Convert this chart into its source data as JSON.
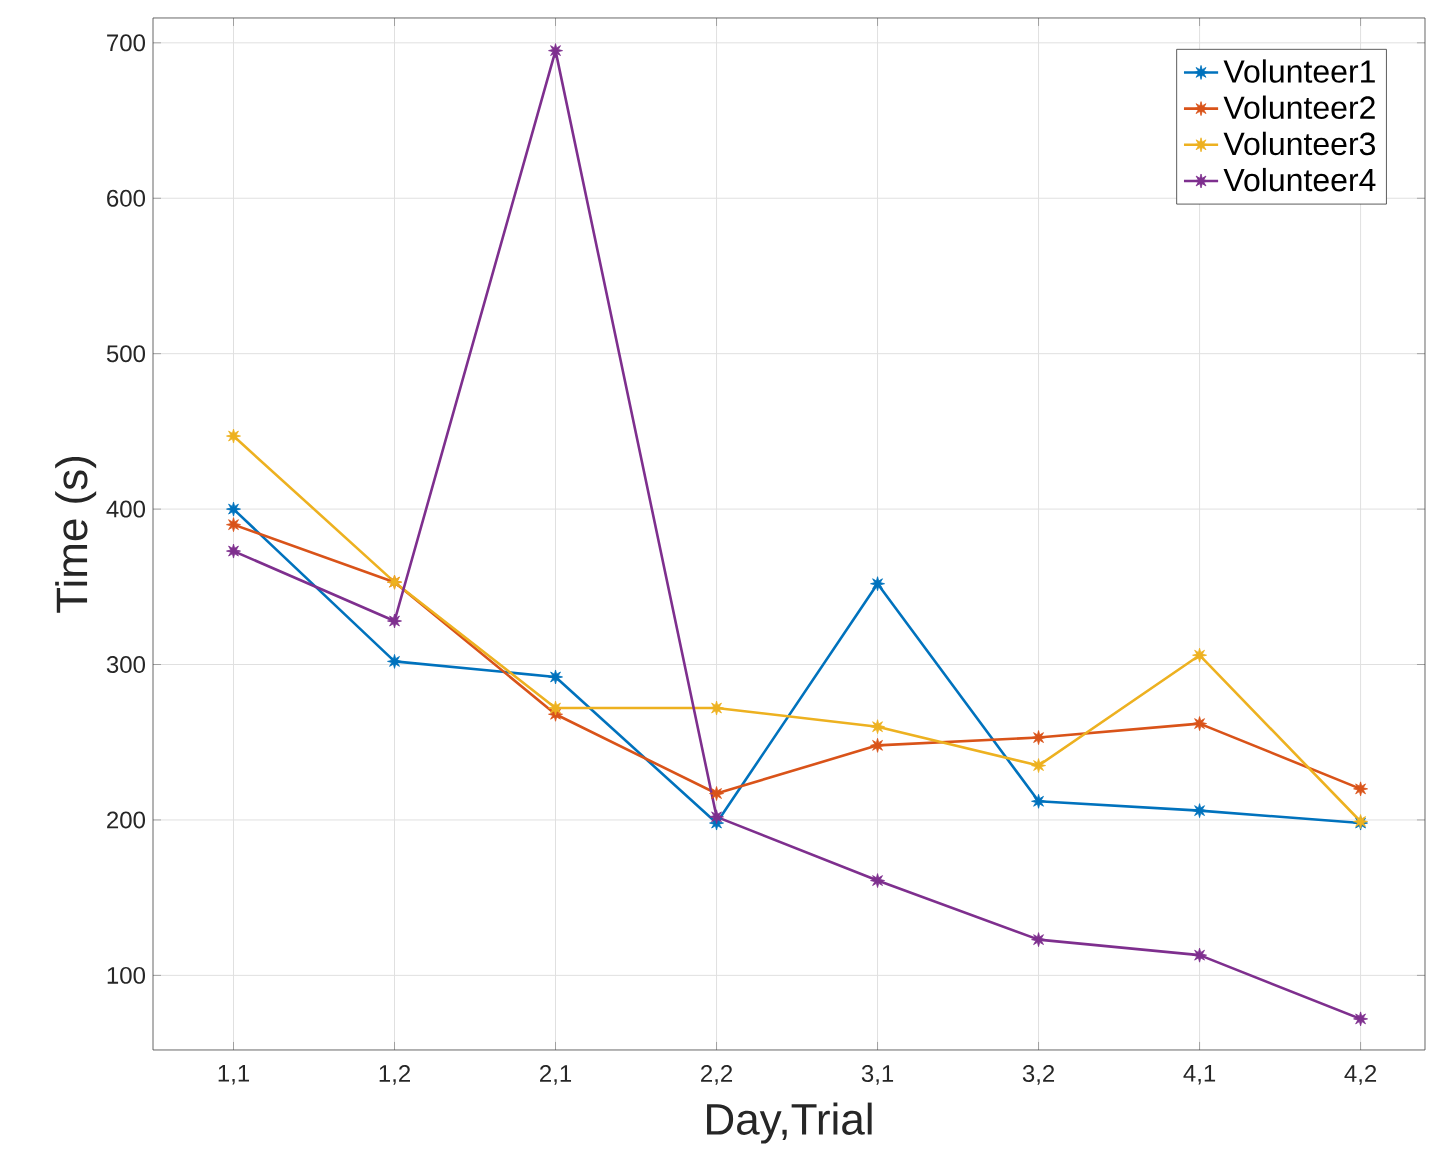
{
  "chart_data": {
    "type": "line",
    "xlabel": "Day,Trial",
    "ylabel": "Time (s)",
    "categories": [
      "1,1",
      "1,2",
      "2,1",
      "2,2",
      "3,1",
      "3,2",
      "4,1",
      "4,2"
    ],
    "series": [
      {
        "name": "Volunteer1",
        "color": "#0072bd",
        "values": [
          400,
          302,
          292,
          198,
          352,
          212,
          206,
          198
        ]
      },
      {
        "name": "Volunteer2",
        "color": "#d95319",
        "values": [
          390,
          353,
          268,
          217,
          248,
          253,
          262,
          220
        ]
      },
      {
        "name": "Volunteer3",
        "color": "#edb120",
        "values": [
          447,
          353,
          272,
          272,
          260,
          235,
          306,
          199
        ]
      },
      {
        "name": "Volunteer4",
        "color": "#7e2f8e",
        "values": [
          373,
          328,
          695,
          202,
          161,
          123,
          113,
          72
        ]
      }
    ],
    "ylim": [
      52,
      716
    ],
    "yticks": [
      100,
      200,
      300,
      400,
      500,
      600,
      700
    ],
    "grid": true,
    "legend": "top right",
    "marker": "star",
    "line_style": "solid"
  }
}
